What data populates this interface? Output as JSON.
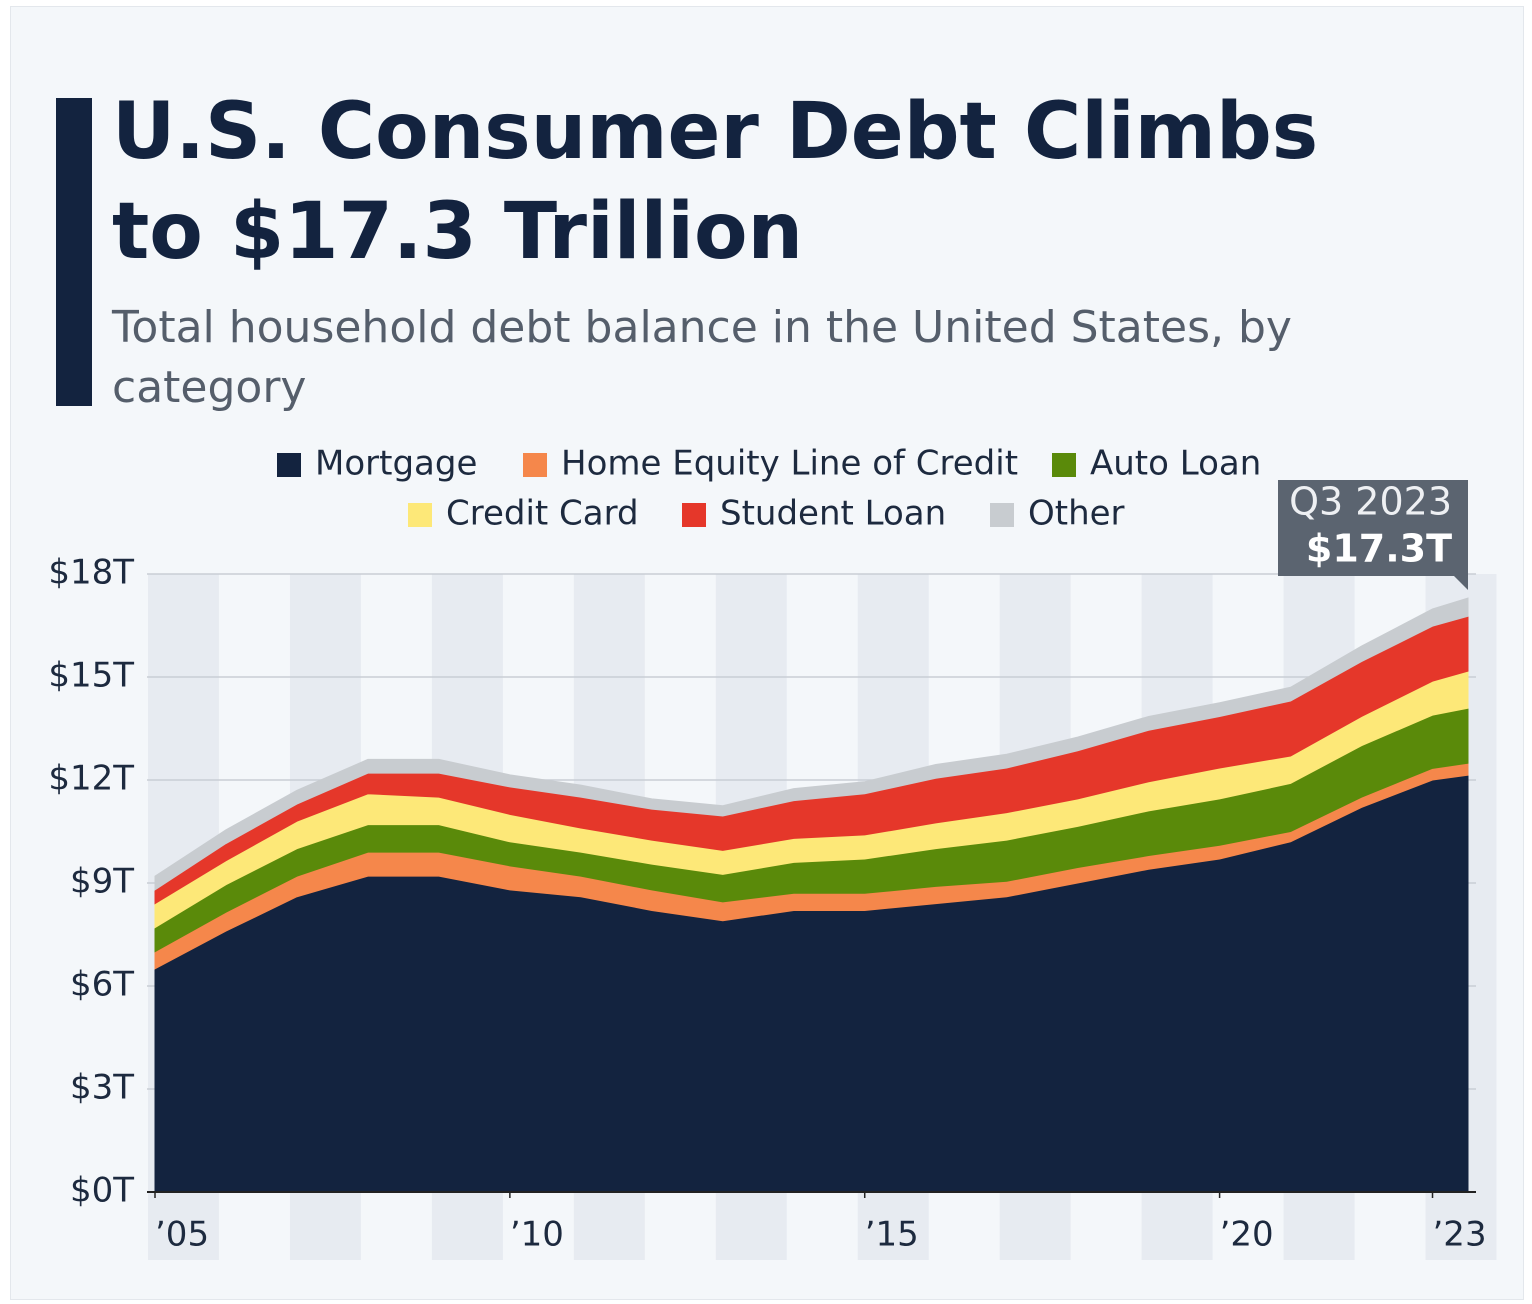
{
  "chart_data": {
    "type": "stacked_area",
    "title": "U.S. Consumer Debt Climbs to $17.3 Trillion",
    "subtitle": "Total household debt balance in the United States, by category",
    "x": [
      2005,
      2006,
      2007,
      2008,
      2009,
      2010,
      2011,
      2012,
      2013,
      2014,
      2015,
      2016,
      2017,
      2018,
      2019,
      2020,
      2021,
      2022,
      2023,
      2023.5
    ],
    "xlim": [
      2005,
      2023.5
    ],
    "xticks": [
      {
        "value": 2005,
        "label": "’05"
      },
      {
        "value": 2010,
        "label": "’10"
      },
      {
        "value": 2015,
        "label": "’15"
      },
      {
        "value": 2020,
        "label": "’20"
      },
      {
        "value": 2023,
        "label": "’23"
      }
    ],
    "ylim": [
      0,
      18
    ],
    "yticks": [
      {
        "value": 0,
        "label": "$0T"
      },
      {
        "value": 3,
        "label": "$3T"
      },
      {
        "value": 6,
        "label": "$6T"
      },
      {
        "value": 9,
        "label": "$9T"
      },
      {
        "value": 12,
        "label": "$12T"
      },
      {
        "value": 15,
        "label": "$15T"
      },
      {
        "value": 18,
        "label": "$18T"
      }
    ],
    "grid": true,
    "series": [
      {
        "name": "Mortgage",
        "color": "#13233f",
        "values": [
          6.5,
          7.6,
          8.6,
          9.2,
          9.2,
          8.8,
          8.6,
          8.2,
          7.9,
          8.2,
          8.2,
          8.4,
          8.6,
          9.0,
          9.4,
          9.7,
          10.2,
          11.2,
          12.0,
          12.14
        ]
      },
      {
        "name": "Home Equity Line of Credit",
        "color": "#f5874b",
        "values": [
          0.5,
          0.55,
          0.6,
          0.7,
          0.7,
          0.7,
          0.6,
          0.6,
          0.55,
          0.5,
          0.5,
          0.5,
          0.45,
          0.45,
          0.4,
          0.4,
          0.3,
          0.3,
          0.34,
          0.35
        ]
      },
      {
        "name": "Auto Loan",
        "color": "#5a8a0a",
        "values": [
          0.7,
          0.8,
          0.8,
          0.8,
          0.8,
          0.7,
          0.7,
          0.75,
          0.8,
          0.9,
          1.0,
          1.1,
          1.2,
          1.2,
          1.3,
          1.35,
          1.4,
          1.5,
          1.55,
          1.6
        ]
      },
      {
        "name": "Credit Card",
        "color": "#fde878",
        "values": [
          0.7,
          0.7,
          0.8,
          0.9,
          0.8,
          0.8,
          0.7,
          0.7,
          0.7,
          0.7,
          0.7,
          0.75,
          0.8,
          0.8,
          0.85,
          0.9,
          0.8,
          0.85,
          0.99,
          1.08
        ]
      },
      {
        "name": "Student Loan",
        "color": "#e5372a",
        "values": [
          0.4,
          0.5,
          0.5,
          0.6,
          0.7,
          0.8,
          0.9,
          0.9,
          1.0,
          1.1,
          1.2,
          1.3,
          1.3,
          1.4,
          1.5,
          1.5,
          1.6,
          1.6,
          1.6,
          1.6
        ]
      },
      {
        "name": "Other",
        "color": "#c8ccd0",
        "values": [
          0.4,
          0.4,
          0.4,
          0.4,
          0.4,
          0.35,
          0.35,
          0.3,
          0.3,
          0.35,
          0.35,
          0.4,
          0.4,
          0.4,
          0.4,
          0.4,
          0.4,
          0.45,
          0.5,
          0.53
        ]
      }
    ],
    "annotation": {
      "label": "Q3 2023",
      "value": 17.3,
      "value_label": "$17.3T"
    }
  }
}
